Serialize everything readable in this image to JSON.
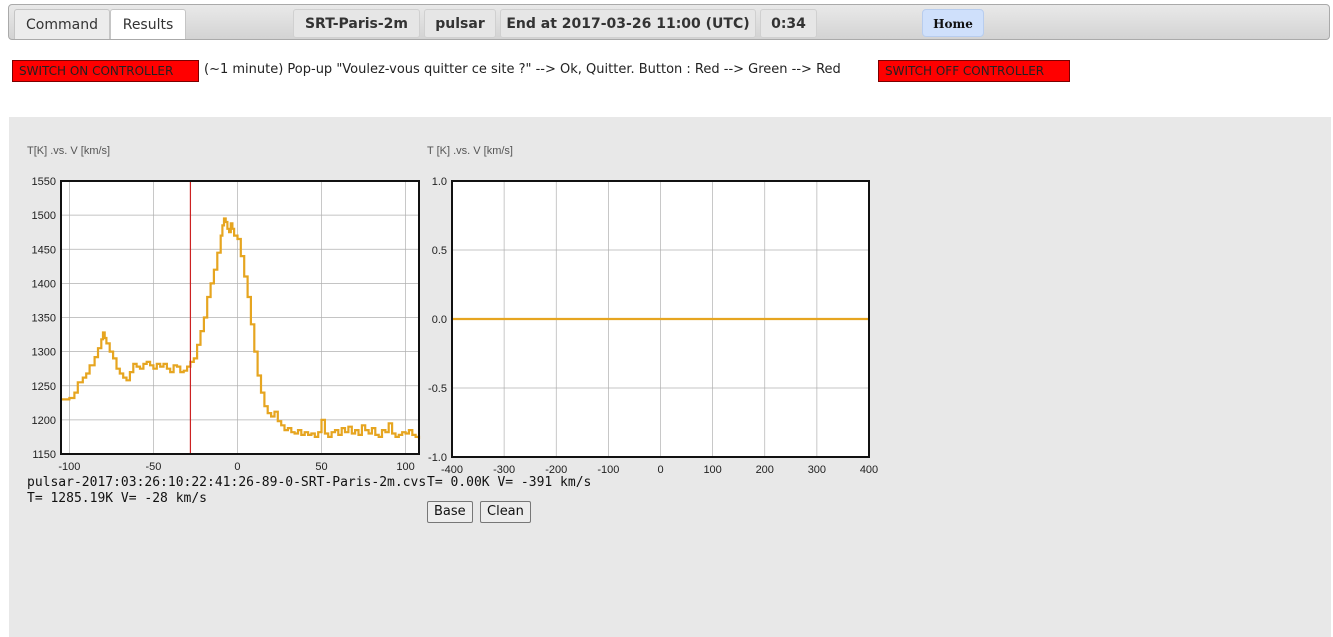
{
  "tabs": [
    {
      "label": "Command"
    },
    {
      "label": "Results"
    }
  ],
  "status": {
    "station": "SRT-Paris-2m",
    "target": "pulsar",
    "end": "End at 2017-03-26 11:00 (UTC)",
    "timer": "0:34",
    "home": "Home"
  },
  "controller": {
    "on_label": "SWITCH ON CONTROLLER",
    "instructions": "(~1 minute) Pop-up \"Voulez-vous quitter ce site ?\" --> Ok, Quitter. Button : Red --> Green --> Red",
    "off_label": "SWITCH OFF CONTROLLER",
    "button_color": "#ff0000"
  },
  "chart_data": [
    {
      "type": "line",
      "title": "T[K] .vs. V [km/s]",
      "xlim": [
        -105,
        108
      ],
      "ylim": [
        1150,
        1550
      ],
      "xticks": [
        -100,
        -50,
        0,
        50,
        100
      ],
      "yticks": [
        1150,
        1200,
        1250,
        1300,
        1350,
        1400,
        1450,
        1500,
        1550
      ],
      "grid": true,
      "line_color": "#e6a520",
      "cursor_x": -28,
      "cursor_color": "#cc2222",
      "series": [
        {
          "x": [
            -105,
            -100,
            -97,
            -95,
            -92,
            -90,
            -88,
            -85,
            -83,
            -81,
            -80,
            -79,
            -78,
            -76,
            -74,
            -72,
            -70,
            -68,
            -66,
            -64,
            -62,
            -60,
            -58,
            -56,
            -54,
            -52,
            -50,
            -48,
            -46,
            -44,
            -42,
            -40,
            -38,
            -36,
            -34,
            -32,
            -30,
            -28,
            -26,
            -24,
            -22,
            -20,
            -18,
            -16,
            -14,
            -12,
            -10,
            -9,
            -8,
            -7,
            -6,
            -5,
            -4,
            -3,
            -2,
            0,
            2,
            4,
            6,
            8,
            10,
            12,
            14,
            16,
            18,
            20,
            22,
            24,
            26,
            28,
            30,
            32,
            34,
            36,
            38,
            40,
            42,
            44,
            46,
            48,
            50,
            52,
            54,
            56,
            58,
            60,
            62,
            64,
            66,
            68,
            70,
            72,
            74,
            76,
            78,
            80,
            82,
            84,
            86,
            88,
            90,
            92,
            94,
            96,
            98,
            100,
            102,
            104,
            106,
            108
          ],
          "y": [
            1230,
            1232,
            1240,
            1255,
            1262,
            1268,
            1280,
            1292,
            1305,
            1318,
            1328,
            1320,
            1312,
            1300,
            1290,
            1275,
            1268,
            1262,
            1258,
            1270,
            1282,
            1278,
            1275,
            1282,
            1285,
            1280,
            1275,
            1282,
            1278,
            1282,
            1275,
            1270,
            1280,
            1278,
            1270,
            1272,
            1278,
            1285,
            1290,
            1310,
            1330,
            1350,
            1380,
            1400,
            1420,
            1445,
            1470,
            1485,
            1495,
            1490,
            1480,
            1475,
            1488,
            1480,
            1470,
            1465,
            1440,
            1410,
            1380,
            1340,
            1300,
            1265,
            1240,
            1220,
            1210,
            1205,
            1212,
            1198,
            1192,
            1185,
            1188,
            1182,
            1180,
            1185,
            1178,
            1182,
            1178,
            1180,
            1175,
            1182,
            1200,
            1180,
            1175,
            1182,
            1185,
            1178,
            1188,
            1182,
            1190,
            1180,
            1185,
            1178,
            1192,
            1185,
            1180,
            1188,
            1178,
            1175,
            1185,
            1182,
            1195,
            1180,
            1175,
            1178,
            1182,
            1180,
            1185,
            1178,
            1175,
            1172
          ]
        }
      ]
    },
    {
      "type": "line",
      "title": "T [K] .vs. V [km/s]",
      "xlim": [
        -400,
        400
      ],
      "ylim": [
        -1.0,
        1.0
      ],
      "xticks": [
        -400,
        -300,
        -200,
        -100,
        0,
        100,
        200,
        300,
        400
      ],
      "yticks": [
        -1.0,
        -0.5,
        0.0,
        0.5,
        1.0
      ],
      "grid": true,
      "line_color": "#e6a520",
      "series": [
        {
          "x": [
            -400,
            400
          ],
          "y": [
            0,
            0
          ]
        }
      ]
    }
  ],
  "readouts": {
    "file": "pulsar-2017:03:26:10:22:41:26-89-0-SRT-Paris-2m.cvs",
    "left": "T= 1285.19K V= -28 km/s",
    "right": "T= 0.00K V= -391 km/s"
  },
  "buttons": {
    "base": "Base",
    "clean": "Clean"
  }
}
